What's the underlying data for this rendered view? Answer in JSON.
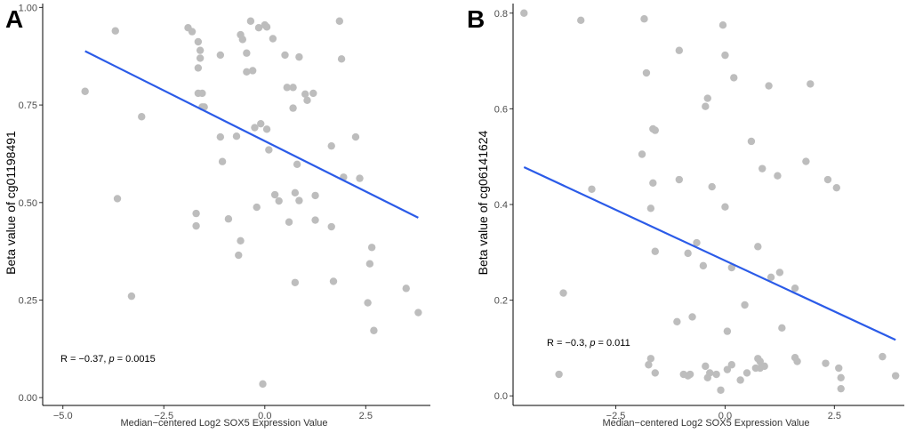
{
  "chart_data": [
    {
      "type": "scatter",
      "panel_label": "A",
      "xlabel": "Median−centered Log2 SOX5 Expression Value",
      "ylabel": "Beta value of cg01198491",
      "xlim": [
        -5.5,
        4.1
      ],
      "ylim": [
        -0.02,
        1.01
      ],
      "x_ticks": [
        -5.0,
        -2.5,
        0.0,
        2.5
      ],
      "x_tick_labels": [
        "−5.0",
        "−2.5",
        "0.0",
        "2.5"
      ],
      "y_ticks": [
        0.0,
        0.25,
        0.5,
        0.75,
        1.0
      ],
      "y_tick_labels": [
        "0.00",
        "0.25",
        "0.50",
        "0.75",
        "1.00"
      ],
      "trend_line": {
        "x": [
          -4.45,
          3.8
        ],
        "y": [
          0.888,
          0.461
        ]
      },
      "stat_prefix": "R = −0.37, ",
      "stat_p_symbol": "p",
      "stat_suffix": " = 0.0015",
      "points": {
        "x": [
          -4.45,
          -3.7,
          -3.65,
          -3.3,
          -3.05,
          -1.9,
          -1.8,
          -1.65,
          -1.6,
          -1.6,
          -1.65,
          -1.55,
          -1.55,
          -1.7,
          -1.7,
          -1.65,
          -1.5,
          -1.1,
          -1.1,
          -1.05,
          -0.9,
          -0.7,
          -0.6,
          -0.65,
          -0.6,
          -0.55,
          -0.45,
          -0.45,
          -0.35,
          -0.3,
          -0.25,
          -0.2,
          -0.15,
          -0.1,
          0.0,
          0.05,
          0.05,
          0.1,
          0.2,
          0.25,
          0.35,
          0.5,
          0.55,
          0.6,
          0.7,
          0.7,
          0.75,
          0.75,
          0.8,
          0.85,
          0.85,
          1.0,
          1.05,
          1.2,
          1.25,
          1.25,
          1.65,
          1.65,
          1.7,
          1.85,
          1.9,
          1.95,
          2.25,
          2.35,
          2.55,
          2.6,
          2.65,
          2.7,
          3.5,
          3.8,
          -0.05
        ],
        "y": [
          0.785,
          0.94,
          0.51,
          0.26,
          0.72,
          0.948,
          0.938,
          0.912,
          0.89,
          0.87,
          0.845,
          0.745,
          0.78,
          0.472,
          0.44,
          0.78,
          0.745,
          0.878,
          0.668,
          0.605,
          0.458,
          0.67,
          0.402,
          0.365,
          0.93,
          0.918,
          0.883,
          0.835,
          0.965,
          0.838,
          0.692,
          0.488,
          0.948,
          0.702,
          0.955,
          0.95,
          0.688,
          0.635,
          0.92,
          0.52,
          0.504,
          0.878,
          0.795,
          0.45,
          0.795,
          0.742,
          0.525,
          0.295,
          0.598,
          0.873,
          0.505,
          0.778,
          0.762,
          0.78,
          0.518,
          0.455,
          0.645,
          0.438,
          0.298,
          0.965,
          0.868,
          0.565,
          0.668,
          0.562,
          0.243,
          0.343,
          0.385,
          0.172,
          0.28,
          0.218,
          0.035
        ]
      }
    },
    {
      "type": "scatter",
      "panel_label": "B",
      "xlabel": "Median−centered Log2 SOX5 Expression Value",
      "ylabel": "Beta value of cg06141624",
      "xlim": [
        -4.85,
        4.1
      ],
      "ylim": [
        -0.02,
        0.82
      ],
      "x_ticks": [
        -2.5,
        0.0,
        2.5
      ],
      "x_tick_labels": [
        "−2.5",
        "0.0",
        "2.5"
      ],
      "y_ticks": [
        0.0,
        0.2,
        0.4,
        0.6,
        0.8
      ],
      "y_tick_labels": [
        "0.0",
        "0.2",
        "0.4",
        "0.6",
        "0.8"
      ],
      "trend_line": {
        "x": [
          -4.6,
          3.9
        ],
        "y": [
          0.478,
          0.117
        ]
      },
      "stat_prefix": "R = −0.3, ",
      "stat_p_symbol": "p",
      "stat_suffix": " = 0.011",
      "points": {
        "x": [
          -4.6,
          -3.3,
          -3.7,
          -3.8,
          -3.05,
          -1.85,
          -1.8,
          -1.9,
          -1.7,
          -1.65,
          -1.65,
          -1.6,
          -1.75,
          -1.6,
          -1.7,
          -1.6,
          -1.1,
          -1.05,
          -1.05,
          -0.95,
          -0.85,
          -0.8,
          -0.75,
          -0.85,
          -0.65,
          -0.5,
          -0.45,
          -0.45,
          -0.4,
          -0.35,
          -0.4,
          -0.3,
          -0.2,
          -0.1,
          -0.05,
          0.0,
          0.0,
          0.05,
          0.05,
          0.15,
          0.15,
          0.2,
          0.35,
          0.45,
          0.5,
          0.6,
          0.7,
          0.75,
          0.75,
          0.8,
          0.8,
          0.85,
          1.0,
          1.05,
          1.2,
          1.25,
          1.3,
          1.6,
          1.6,
          1.65,
          1.85,
          1.95,
          2.3,
          2.35,
          2.55,
          2.6,
          2.65,
          2.65,
          3.6,
          3.9,
          0.9
        ],
        "y": [
          0.8,
          0.785,
          0.215,
          0.045,
          0.432,
          0.788,
          0.675,
          0.505,
          0.392,
          0.445,
          0.558,
          0.302,
          0.065,
          0.048,
          0.078,
          0.555,
          0.155,
          0.722,
          0.452,
          0.045,
          0.042,
          0.045,
          0.165,
          0.298,
          0.32,
          0.272,
          0.062,
          0.605,
          0.622,
          0.048,
          0.038,
          0.437,
          0.045,
          0.012,
          0.775,
          0.712,
          0.395,
          0.135,
          0.055,
          0.268,
          0.065,
          0.665,
          0.033,
          0.19,
          0.048,
          0.532,
          0.058,
          0.312,
          0.078,
          0.058,
          0.072,
          0.475,
          0.648,
          0.248,
          0.46,
          0.258,
          0.142,
          0.225,
          0.08,
          0.072,
          0.49,
          0.652,
          0.068,
          0.452,
          0.435,
          0.058,
          0.015,
          0.038,
          0.082,
          0.042,
          0.062
        ]
      }
    }
  ]
}
